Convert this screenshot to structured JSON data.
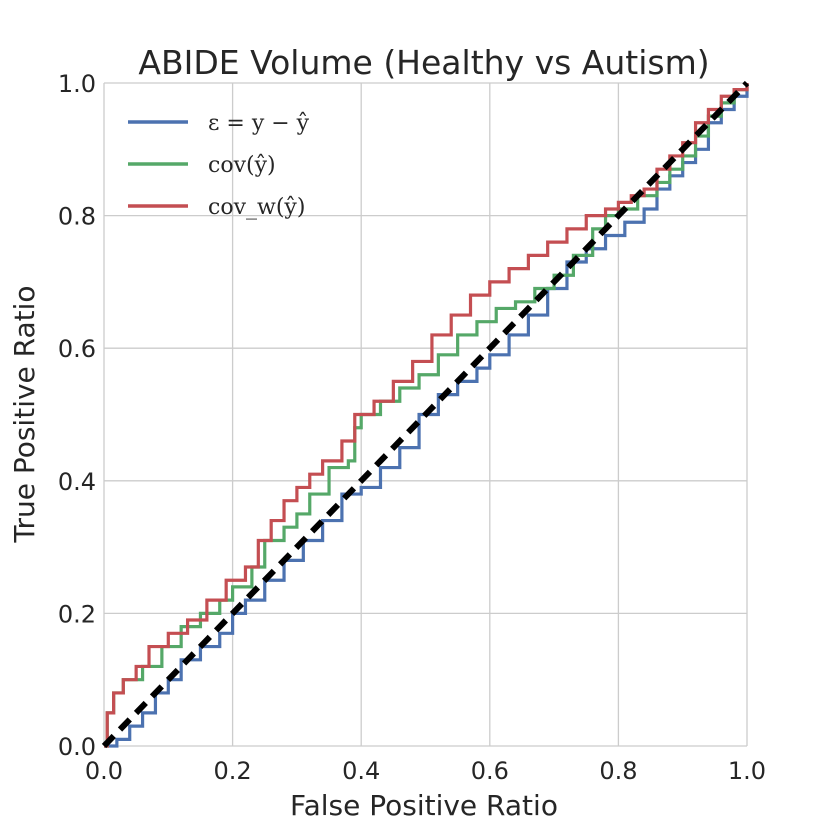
{
  "chart_data": {
    "type": "line",
    "title": "ABIDE Volume (Healthy vs Autism)",
    "xlabel": "False Positive Ratio",
    "ylabel": "True Positive Ratio",
    "xlim": [
      0,
      1
    ],
    "ylim": [
      0,
      1
    ],
    "grid": true,
    "legend_position": "top-left",
    "xticks": [
      0.0,
      0.2,
      0.4,
      0.6,
      0.8,
      1.0
    ],
    "yticks": [
      0.0,
      0.2,
      0.4,
      0.6,
      0.8,
      1.0
    ],
    "xtick_labels": [
      "0.0",
      "0.2",
      "0.4",
      "0.6",
      "0.8",
      "1.0"
    ],
    "ytick_labels": [
      "0.0",
      "0.2",
      "0.4",
      "0.6",
      "0.8",
      "1.0"
    ],
    "diagonal": {
      "from": [
        0,
        0
      ],
      "to": [
        1,
        1
      ],
      "color": "#000000",
      "style": "dashed"
    },
    "series": [
      {
        "name": "ε = y − ŷ",
        "color": "#4c72b0",
        "points": [
          [
            0,
            0
          ],
          [
            0.02,
            0.01
          ],
          [
            0.04,
            0.03
          ],
          [
            0.06,
            0.05
          ],
          [
            0.08,
            0.08
          ],
          [
            0.1,
            0.1
          ],
          [
            0.12,
            0.13
          ],
          [
            0.15,
            0.15
          ],
          [
            0.18,
            0.17
          ],
          [
            0.2,
            0.2
          ],
          [
            0.22,
            0.22
          ],
          [
            0.25,
            0.25
          ],
          [
            0.28,
            0.28
          ],
          [
            0.31,
            0.31
          ],
          [
            0.34,
            0.34
          ],
          [
            0.37,
            0.38
          ],
          [
            0.4,
            0.39
          ],
          [
            0.43,
            0.42
          ],
          [
            0.46,
            0.45
          ],
          [
            0.49,
            0.5
          ],
          [
            0.52,
            0.53
          ],
          [
            0.55,
            0.55
          ],
          [
            0.58,
            0.57
          ],
          [
            0.6,
            0.59
          ],
          [
            0.63,
            0.62
          ],
          [
            0.66,
            0.65
          ],
          [
            0.69,
            0.69
          ],
          [
            0.72,
            0.73
          ],
          [
            0.75,
            0.75
          ],
          [
            0.78,
            0.77
          ],
          [
            0.81,
            0.79
          ],
          [
            0.84,
            0.81
          ],
          [
            0.86,
            0.84
          ],
          [
            0.88,
            0.86
          ],
          [
            0.9,
            0.88
          ],
          [
            0.92,
            0.9
          ],
          [
            0.94,
            0.94
          ],
          [
            0.96,
            0.96
          ],
          [
            0.98,
            0.98
          ],
          [
            1.0,
            1.0
          ]
        ]
      },
      {
        "name": "cov(ŷ)",
        "color": "#55a868",
        "points": [
          [
            0,
            0
          ],
          [
            0.005,
            0.05
          ],
          [
            0.015,
            0.08
          ],
          [
            0.03,
            0.1
          ],
          [
            0.06,
            0.12
          ],
          [
            0.09,
            0.15
          ],
          [
            0.12,
            0.18
          ],
          [
            0.15,
            0.2
          ],
          [
            0.18,
            0.22
          ],
          [
            0.2,
            0.24
          ],
          [
            0.23,
            0.27
          ],
          [
            0.25,
            0.31
          ],
          [
            0.28,
            0.33
          ],
          [
            0.3,
            0.35
          ],
          [
            0.32,
            0.38
          ],
          [
            0.35,
            0.42
          ],
          [
            0.38,
            0.43
          ],
          [
            0.39,
            0.48
          ],
          [
            0.4,
            0.5
          ],
          [
            0.43,
            0.52
          ],
          [
            0.46,
            0.54
          ],
          [
            0.49,
            0.56
          ],
          [
            0.52,
            0.59
          ],
          [
            0.55,
            0.62
          ],
          [
            0.58,
            0.64
          ],
          [
            0.61,
            0.66
          ],
          [
            0.64,
            0.67
          ],
          [
            0.67,
            0.69
          ],
          [
            0.7,
            0.71
          ],
          [
            0.73,
            0.74
          ],
          [
            0.76,
            0.78
          ],
          [
            0.78,
            0.8
          ],
          [
            0.8,
            0.81
          ],
          [
            0.83,
            0.83
          ],
          [
            0.86,
            0.85
          ],
          [
            0.88,
            0.87
          ],
          [
            0.9,
            0.89
          ],
          [
            0.92,
            0.92
          ],
          [
            0.94,
            0.95
          ],
          [
            0.96,
            0.97
          ],
          [
            0.98,
            0.99
          ],
          [
            1.0,
            1.0
          ]
        ]
      },
      {
        "name": "cov_w(ŷ)",
        "color": "#c44e52",
        "points": [
          [
            0,
            0
          ],
          [
            0.005,
            0.05
          ],
          [
            0.015,
            0.08
          ],
          [
            0.03,
            0.1
          ],
          [
            0.05,
            0.12
          ],
          [
            0.07,
            0.15
          ],
          [
            0.1,
            0.17
          ],
          [
            0.13,
            0.19
          ],
          [
            0.16,
            0.22
          ],
          [
            0.19,
            0.25
          ],
          [
            0.22,
            0.27
          ],
          [
            0.24,
            0.31
          ],
          [
            0.26,
            0.34
          ],
          [
            0.28,
            0.37
          ],
          [
            0.3,
            0.39
          ],
          [
            0.32,
            0.41
          ],
          [
            0.34,
            0.43
          ],
          [
            0.37,
            0.46
          ],
          [
            0.39,
            0.5
          ],
          [
            0.42,
            0.52
          ],
          [
            0.45,
            0.55
          ],
          [
            0.48,
            0.58
          ],
          [
            0.51,
            0.62
          ],
          [
            0.54,
            0.65
          ],
          [
            0.57,
            0.68
          ],
          [
            0.6,
            0.7
          ],
          [
            0.63,
            0.72
          ],
          [
            0.66,
            0.74
          ],
          [
            0.69,
            0.76
          ],
          [
            0.72,
            0.78
          ],
          [
            0.75,
            0.8
          ],
          [
            0.78,
            0.81
          ],
          [
            0.8,
            0.82
          ],
          [
            0.82,
            0.83
          ],
          [
            0.84,
            0.84
          ],
          [
            0.86,
            0.87
          ],
          [
            0.88,
            0.89
          ],
          [
            0.9,
            0.91
          ],
          [
            0.92,
            0.94
          ],
          [
            0.94,
            0.96
          ],
          [
            0.96,
            0.98
          ],
          [
            0.98,
            0.99
          ],
          [
            1.0,
            1.0
          ]
        ]
      }
    ]
  }
}
